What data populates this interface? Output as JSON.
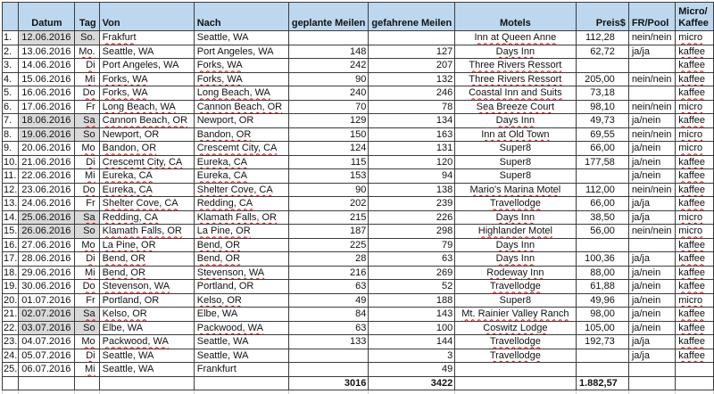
{
  "table": {
    "headers": {
      "n": "",
      "datum": "Datum",
      "tag": "Tag",
      "von": "Von",
      "nach": "Nach",
      "gep": "geplante Meilen",
      "gef": "gefahrene Meilen",
      "motel": "Motels",
      "preis": "Preis$",
      "fr": "FR/Pool",
      "mk1": "Micro/",
      "mk2": "Kaffee"
    },
    "rows": [
      {
        "n": "1.",
        "datum": "12.06.2016",
        "tag": "So.",
        "von": "Frakfurt",
        "nach": "Seattle, WA",
        "gep": "",
        "gef": "",
        "motel": "Inn at Queen Anne",
        "preis": "112,28",
        "fr": "nein/nein",
        "mk": "micro",
        "weekend": true,
        "u": [
          "von",
          "motel",
          "mk"
        ]
      },
      {
        "n": "2.",
        "datum": "13.06.2016",
        "tag": "Mo.",
        "von": "Seattle, WA",
        "nach": "Port Angeles, WA",
        "gep": "148",
        "gef": "127",
        "motel": "Days Inn",
        "preis": "62,72",
        "fr": "ja/ja",
        "mk": "kaffee",
        "weekend": false,
        "u": [
          "tag",
          "motel",
          "mk"
        ]
      },
      {
        "n": "3.",
        "datum": "14.06.2016",
        "tag": "Di",
        "von": "Port Angeles, WA",
        "nach": "Forks, WA",
        "gep": "242",
        "gef": "207",
        "motel": "Three Rivers Ressort",
        "preis": "",
        "fr": "",
        "mk": "kaffee",
        "weekend": false,
        "u": [
          "tag",
          "nach",
          "motel",
          "mk"
        ]
      },
      {
        "n": "4.",
        "datum": "15.06.2016",
        "tag": "Mi",
        "von": "Forks, WA",
        "nach": "Forks, WA",
        "gep": "90",
        "gef": "132",
        "motel": "Three Rivers Ressort",
        "preis": "205,00",
        "fr": "nein/nein",
        "mk": "kaffee",
        "weekend": false,
        "u": [
          "tag",
          "von",
          "nach",
          "motel",
          "mk"
        ]
      },
      {
        "n": "5.",
        "datum": "16.06.2016",
        "tag": "Do",
        "von": "Forks, WA",
        "nach": "Long Beach, WA",
        "gep": "240",
        "gef": "246",
        "motel": "Coastal Inn and Suits",
        "preis": "73,18",
        "fr": "",
        "mk": "kaffee",
        "weekend": false,
        "u": [
          "tag",
          "von",
          "nach",
          "motel",
          "mk"
        ]
      },
      {
        "n": "6.",
        "datum": "17.06.2016",
        "tag": "Fr",
        "von": "Long Beach, WA",
        "nach": "Cannon Beach, OR",
        "gep": "70",
        "gef": "78",
        "motel": "Sea Breeze Court",
        "preis": "98,10",
        "fr": "nein/nein",
        "mk": "micro",
        "weekend": false,
        "u": [
          "von",
          "nach",
          "motel",
          "mk"
        ]
      },
      {
        "n": "7.",
        "datum": "18.06.2016",
        "tag": "Sa",
        "von": "Cannon Beach, OR",
        "nach": "Newport, OR",
        "gep": "129",
        "gef": "134",
        "motel": "Days Inn",
        "preis": "49,73",
        "fr": "ja/nein",
        "mk": "kaffee",
        "weekend": true,
        "u": [
          "tag",
          "von",
          "motel",
          "mk"
        ]
      },
      {
        "n": "8.",
        "datum": "19.06.2016",
        "tag": "So",
        "von": "Newport, OR",
        "nach": "Bandon, OR",
        "gep": "150",
        "gef": "163",
        "motel": "Inn at Old Town",
        "preis": "69,55",
        "fr": "nein/nein",
        "mk": "micro",
        "weekend": true,
        "u": [
          "nach",
          "motel",
          "mk"
        ]
      },
      {
        "n": "9.",
        "datum": "20.06.2016",
        "tag": "Mo",
        "von": "Bandon, OR",
        "nach": "Crescemt City, CA",
        "gep": "124",
        "gef": "131",
        "motel": "Super8",
        "preis": "66,00",
        "fr": "ja/nein",
        "mk": "micro",
        "weekend": false,
        "u": [
          "tag",
          "von",
          "nach",
          "mk"
        ]
      },
      {
        "n": "10.",
        "datum": "21.06.2016",
        "tag": "Di",
        "von": "Crescemt City, CA",
        "nach": "Eureka, CA",
        "gep": "115",
        "gef": "120",
        "motel": "Super8",
        "preis": "177,58",
        "fr": "ja/nein",
        "mk": "kaffee",
        "weekend": false,
        "u": [
          "tag",
          "von",
          "nach",
          "mk"
        ]
      },
      {
        "n": "11.",
        "datum": "22.06.2016",
        "tag": "Mi",
        "von": "Eureka, CA",
        "nach": "Eureka, CA",
        "gep": "153",
        "gef": "94",
        "motel": "Super8",
        "preis": "",
        "fr": "ja/nein",
        "mk": "kaffee",
        "weekend": false,
        "u": [
          "tag",
          "von",
          "nach",
          "mk"
        ]
      },
      {
        "n": "12.",
        "datum": "23.06.2016",
        "tag": "Do",
        "von": "Eureka, CA",
        "nach": "Shelter Cove, CA",
        "gep": "90",
        "gef": "138",
        "motel": "Mario's Marina Motel",
        "preis": "112,00",
        "fr": "nein/nein",
        "mk": "kaffee",
        "weekend": false,
        "u": [
          "tag",
          "von",
          "nach",
          "motel",
          "mk"
        ]
      },
      {
        "n": "13.",
        "datum": "24.06.2016",
        "tag": "Fr",
        "von": "Shelter Cove, CA",
        "nach": "Redding, CA",
        "gep": "202",
        "gef": "239",
        "motel": "Travellodge",
        "preis": "66,00",
        "fr": "ja/ja",
        "mk": "kaffee",
        "weekend": false,
        "u": [
          "von",
          "nach",
          "motel",
          "mk"
        ]
      },
      {
        "n": "14.",
        "datum": "25.06.2016",
        "tag": "Sa",
        "von": "Redding, CA",
        "nach": "Klamath Falls, OR",
        "gep": "215",
        "gef": "226",
        "motel": "Days Inn",
        "preis": "38,50",
        "fr": "ja/ja",
        "mk": "micro",
        "weekend": true,
        "u": [
          "tag",
          "von",
          "nach",
          "motel",
          "mk"
        ]
      },
      {
        "n": "15.",
        "datum": "26.06.2016",
        "tag": "So",
        "von": "Klamath Falls, OR",
        "nach": "La Pine, OR",
        "gep": "187",
        "gef": "298",
        "motel": "Highlander Motel",
        "preis": "56,00",
        "fr": "nein/nein",
        "mk": "micro",
        "weekend": true,
        "u": [
          "von",
          "nach",
          "motel",
          "mk"
        ]
      },
      {
        "n": "16.",
        "datum": "27.06.2016",
        "tag": "Mo",
        "von": "La Pine, OR",
        "nach": "Bend, OR",
        "gep": "225",
        "gef": "79",
        "motel": "Days Inn",
        "preis": "",
        "fr": "",
        "mk": "kaffee",
        "weekend": false,
        "u": [
          "tag",
          "von",
          "nach",
          "motel",
          "mk"
        ]
      },
      {
        "n": "17.",
        "datum": "28.06.2016",
        "tag": "Di",
        "von": "Bend, OR",
        "nach": "Bend, OR",
        "gep": "28",
        "gef": "63",
        "motel": "Days Inn",
        "preis": "100,36",
        "fr": "ja/ja",
        "mk": "kaffee",
        "weekend": false,
        "u": [
          "tag",
          "von",
          "nach",
          "motel",
          "mk"
        ]
      },
      {
        "n": "18.",
        "datum": "29.06.2016",
        "tag": "Mi",
        "von": "Bend, OR",
        "nach": "Stevenson, WA",
        "gep": "216",
        "gef": "269",
        "motel": "Rodeway Inn",
        "preis": "88,00",
        "fr": "ja/nein",
        "mk": "kaffee",
        "weekend": false,
        "u": [
          "tag",
          "von",
          "nach",
          "motel",
          "mk"
        ]
      },
      {
        "n": "19.",
        "datum": "30.06.2016",
        "tag": "Do",
        "von": "Stevenson, WA",
        "nach": "Portland, OR",
        "gep": "63",
        "gef": "52",
        "motel": "Travellodge",
        "preis": "61,88",
        "fr": "ja/nein",
        "mk": "kaffee",
        "weekend": false,
        "u": [
          "tag",
          "von",
          "motel",
          "mk"
        ]
      },
      {
        "n": "20.",
        "datum": "01.07.2016",
        "tag": "Fr",
        "von": "Portland, OR",
        "nach": "Kelso, OR",
        "gep": "49",
        "gef": "188",
        "motel": "Super8",
        "preis": "49,96",
        "fr": "ja/nein",
        "mk": "micro",
        "weekend": false,
        "u": [
          "nach",
          "mk"
        ]
      },
      {
        "n": "21.",
        "datum": "02.07.2016",
        "tag": "Sa",
        "von": "Kelso, OR",
        "nach": "Elbe, WA",
        "gep": "84",
        "gef": "143",
        "motel": "Mt. Rainier Valley Ranch",
        "preis": "98,00",
        "fr": "ja/nein",
        "mk": "kaffee",
        "weekend": true,
        "u": [
          "tag",
          "von",
          "motel",
          "mk"
        ]
      },
      {
        "n": "22.",
        "datum": "03.07.2016",
        "tag": "So",
        "von": "Elbe, WA",
        "nach": "Packwood, WA",
        "gep": "63",
        "gef": "100",
        "motel": "Coswitz Lodge",
        "preis": "105,00",
        "fr": "ja/nein",
        "mk": "kaffee",
        "weekend": true,
        "u": [
          "nach",
          "motel",
          "mk"
        ]
      },
      {
        "n": "23.",
        "datum": "04.07.2016",
        "tag": "Mo",
        "von": "Packwood, WA",
        "nach": "Seattle, WA",
        "gep": "133",
        "gef": "144",
        "motel": "Travellodge",
        "preis": "192,73",
        "fr": "ja/ja",
        "mk": "kaffee",
        "weekend": false,
        "u": [
          "tag",
          "von",
          "motel",
          "mk"
        ]
      },
      {
        "n": "24.",
        "datum": "05.07.2016",
        "tag": "Di",
        "von": "Seattle, WA",
        "nach": "Seattle, WA",
        "gep": "",
        "gef": "3",
        "motel": "Travellodge",
        "preis": "",
        "fr": "ja/ja",
        "mk": "kaffee",
        "weekend": false,
        "u": [
          "tag",
          "motel",
          "mk"
        ]
      },
      {
        "n": "25.",
        "datum": "06.07.2016",
        "tag": "Mi",
        "von": "Seattle, WA",
        "nach": "Frankfurt",
        "gep": "",
        "gef": "49",
        "motel": "",
        "preis": "",
        "fr": "",
        "mk": "",
        "weekend": false,
        "u": [
          "tag"
        ]
      }
    ],
    "totals": {
      "gep": "3016",
      "gef": "3422",
      "preis": "1.882,57"
    },
    "colors": {
      "header_bg": "#bdd7ee",
      "weekend_bg": "#d9d9d9",
      "grid": "#3c3c3c",
      "spellcheck": "#ff0000"
    }
  }
}
